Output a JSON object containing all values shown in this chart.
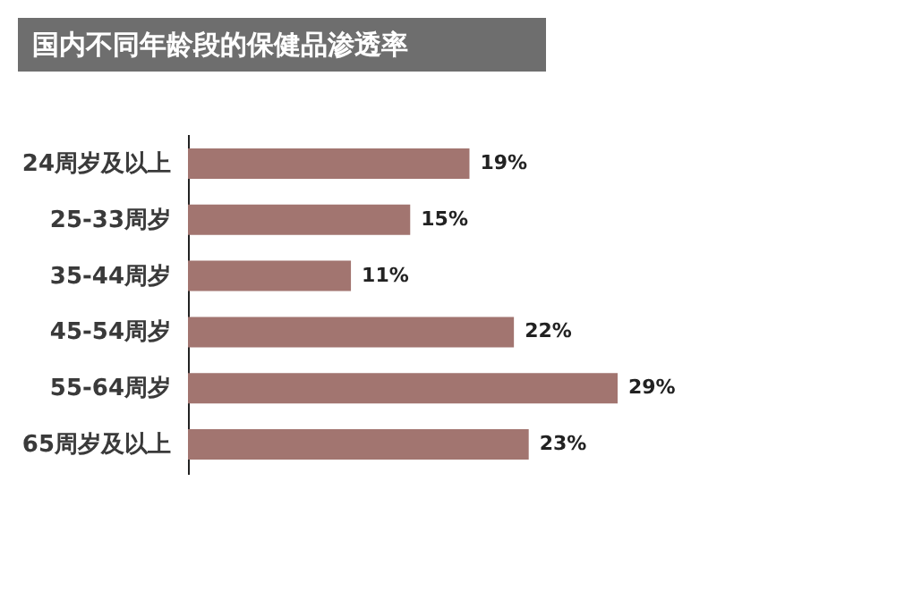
{
  "chart_data": {
    "type": "bar",
    "orientation": "horizontal",
    "title": "国内不同年龄段的保健品渗透率",
    "categories": [
      "24周岁及以上",
      "25-33周岁",
      "35-44周岁",
      "45-54周岁",
      "55-64周岁",
      "65周岁及以上"
    ],
    "values": [
      19,
      15,
      11,
      22,
      29,
      23
    ],
    "value_labels": [
      "19%",
      "15%",
      "11%",
      "22%",
      "29%",
      "23%"
    ],
    "color": "#a27570"
  }
}
